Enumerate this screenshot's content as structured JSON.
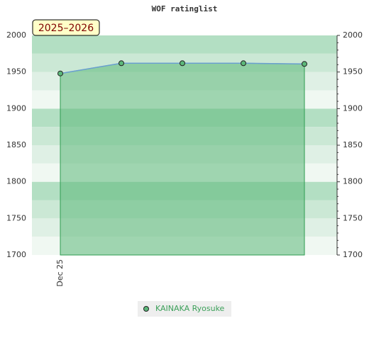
{
  "chart_data": {
    "type": "area",
    "title": "WOF ratinglist",
    "annotation": "2025–2026",
    "categories": [
      "Dec 25",
      null,
      null,
      null,
      null
    ],
    "series": [
      {
        "name": "KAINAKA Ryosuke",
        "color": "#5cb87a",
        "values": [
          1948,
          1962,
          1962,
          1962,
          1961
        ]
      }
    ],
    "ylim": [
      1700,
      2000
    ],
    "yticks": [
      1700,
      1750,
      1800,
      1850,
      1900,
      1950,
      2000
    ]
  }
}
